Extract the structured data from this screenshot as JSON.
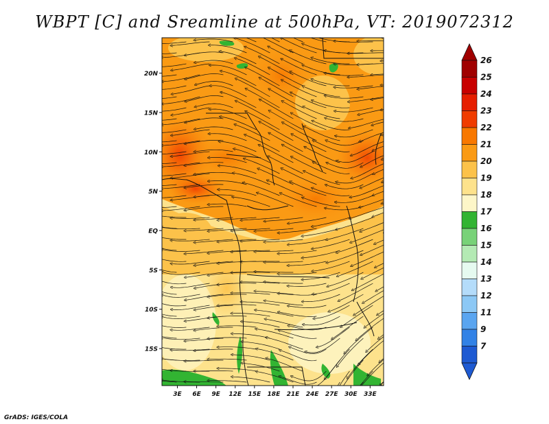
{
  "title": "WBPT [C] and Sreamline at 500hPa, VT: 2019072312",
  "footer": "GrADS: IGES/COLA",
  "map": {
    "lat_ticks": [
      {
        "label": "20N",
        "value": 20
      },
      {
        "label": "15N",
        "value": 15
      },
      {
        "label": "10N",
        "value": 10
      },
      {
        "label": "5N",
        "value": 5
      },
      {
        "label": "EQ",
        "value": 0
      },
      {
        "label": "5S",
        "value": -5
      },
      {
        "label": "10S",
        "value": -10
      },
      {
        "label": "15S",
        "value": -15
      }
    ],
    "lon_ticks": [
      {
        "label": "3E",
        "value": 3
      },
      {
        "label": "6E",
        "value": 6
      },
      {
        "label": "9E",
        "value": 9
      },
      {
        "label": "12E",
        "value": 12
      },
      {
        "label": "15E",
        "value": 15
      },
      {
        "label": "18E",
        "value": 18
      },
      {
        "label": "21E",
        "value": 21
      },
      {
        "label": "24E",
        "value": 24
      },
      {
        "label": "27E",
        "value": 27
      },
      {
        "label": "30E",
        "value": 30
      },
      {
        "label": "33E",
        "value": 33
      }
    ],
    "extent": {
      "lon_min": 0.6,
      "lon_max": 35.1,
      "lat_min": -19.7,
      "lat_max": 24.5
    }
  },
  "colorbar": {
    "levels": [
      {
        "label": "26",
        "color": "#a00000"
      },
      {
        "label": "25",
        "color": "#c80000"
      },
      {
        "label": "24",
        "color": "#e61e00"
      },
      {
        "label": "23",
        "color": "#f03c00"
      },
      {
        "label": "22",
        "color": "#f87800"
      },
      {
        "label": "21",
        "color": "#fa9a14"
      },
      {
        "label": "20",
        "color": "#fcc24a"
      },
      {
        "label": "19",
        "color": "#fde28c"
      },
      {
        "label": "18",
        "color": "#fdf6c8"
      },
      {
        "label": "17",
        "color": "#32b432"
      },
      {
        "label": "16",
        "color": "#78d278"
      },
      {
        "label": "15",
        "color": "#b4eab4"
      },
      {
        "label": "14",
        "color": "#e6faf0"
      },
      {
        "label": "13",
        "color": "#b4dcfa"
      },
      {
        "label": "12",
        "color": "#8cc8f5"
      },
      {
        "label": "11",
        "color": "#5aa5f0"
      },
      {
        "label": "9",
        "color": "#3282e6"
      },
      {
        "label": "7",
        "color": "#1e5ad2"
      }
    ],
    "top_arrow_color": "#a00000",
    "bottom_arrow_color": "#1e5ad2"
  }
}
